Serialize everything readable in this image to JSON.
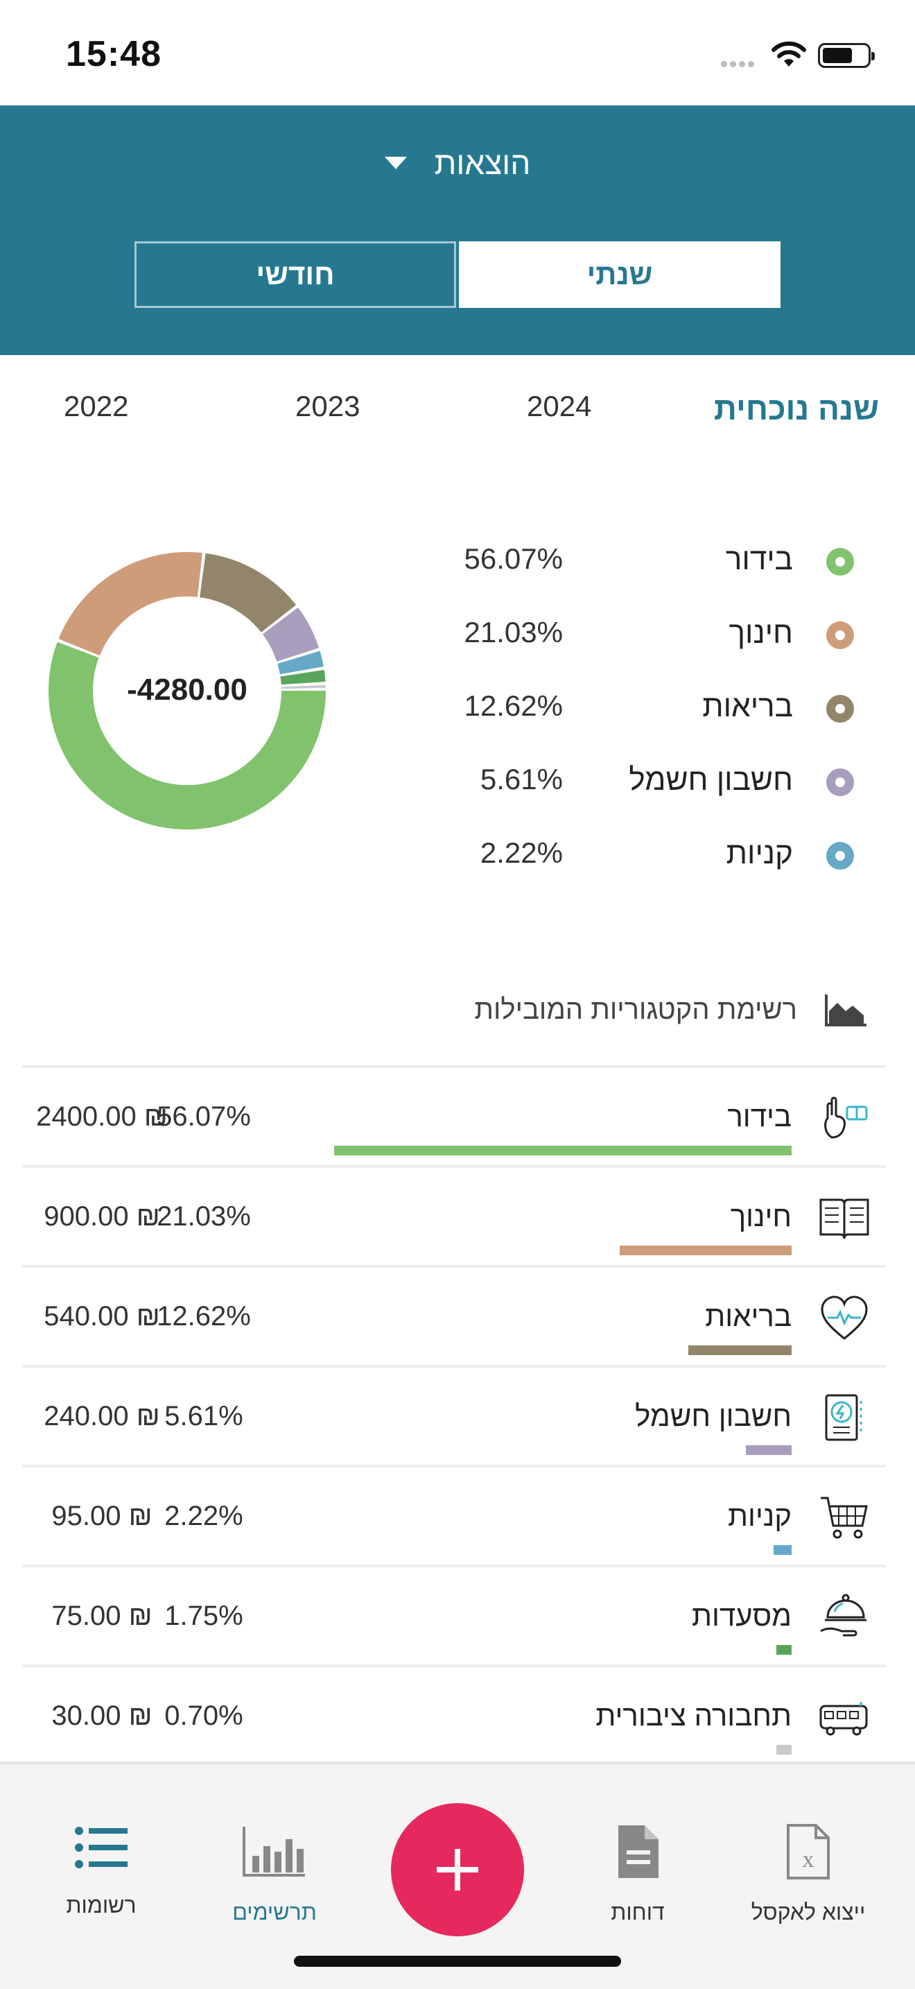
{
  "status": {
    "time": "15:48"
  },
  "header": {
    "title": "הוצאות",
    "seg_yearly": "שנתי",
    "seg_monthly": "חודשי"
  },
  "years": {
    "current": "שנה נוכחית",
    "y1": "2024",
    "y2": "2023",
    "y3": "2022"
  },
  "donut": {
    "total": "-4280.00"
  },
  "legend": [
    {
      "label": "בידור",
      "pct": "56.07%",
      "color": "#80c36c"
    },
    {
      "label": "חינוך",
      "pct": "21.03%",
      "color": "#cf9c7a"
    },
    {
      "label": "בריאות",
      "pct": "12.62%",
      "color": "#93856a"
    },
    {
      "label": "חשבון חשמל",
      "pct": "5.61%",
      "color": "#a99dbd"
    },
    {
      "label": "קניות",
      "pct": "2.22%",
      "color": "#66a9c7"
    }
  ],
  "section": {
    "title": "רשימת הקטגוריות המובילות",
    "icon": "area-chart-icon"
  },
  "categories": [
    {
      "label": "בידור",
      "pct": "56.07%",
      "amount": "2400.00 ₪",
      "value": 56.07,
      "color": "#80c36c",
      "icon": "hand-ticket-icon"
    },
    {
      "label": "חינוך",
      "pct": "21.03%",
      "amount": "900.00 ₪",
      "value": 21.03,
      "color": "#cf9c7a",
      "icon": "book-icon"
    },
    {
      "label": "בריאות",
      "pct": "12.62%",
      "amount": "540.00 ₪",
      "value": 12.62,
      "color": "#93856a",
      "icon": "heart-pulse-icon"
    },
    {
      "label": "חשבון חשמל",
      "pct": "5.61%",
      "amount": "240.00 ₪",
      "value": 5.61,
      "color": "#a99dbd",
      "icon": "electric-bill-icon"
    },
    {
      "label": "קניות",
      "pct": "2.22%",
      "amount": "95.00 ₪",
      "value": 2.22,
      "color": "#66a9c7",
      "icon": "shopping-cart-icon"
    },
    {
      "label": "מסעדות",
      "pct": "1.75%",
      "amount": "75.00 ₪",
      "value": 1.75,
      "color": "#5aa55c",
      "icon": "cloche-icon"
    },
    {
      "label": "תחבורה ציבורית",
      "pct": "0.70%",
      "amount": "30.00 ₪",
      "value": 0.7,
      "color": "#c9c9c9",
      "icon": "bus-icon"
    }
  ],
  "tabs": {
    "lists": "רשומות",
    "charts": "תרשימים",
    "reports": "דוחות",
    "export": "ייצוא לאקסל"
  },
  "colors": {
    "primary": "#267891",
    "fab": "#e5295c"
  }
}
